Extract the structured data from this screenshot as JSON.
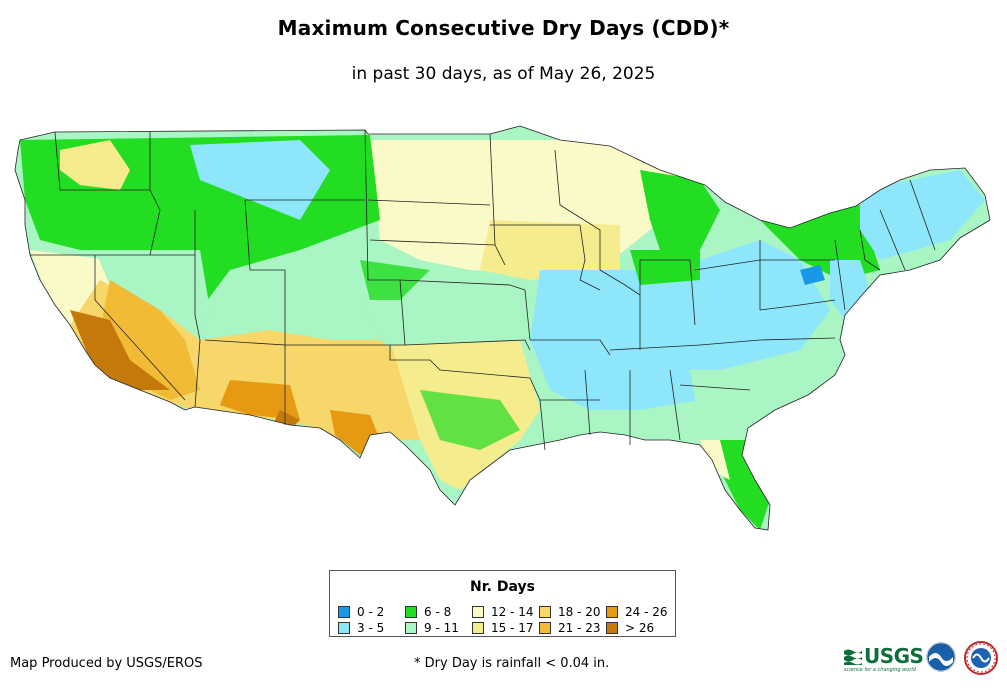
{
  "title": "Maximum Consecutive Dry Days (CDD)*",
  "subtitle": "in past 30 days, as of May 26, 2025",
  "legend": {
    "title": "Nr. Days",
    "items": [
      {
        "label": "0 - 2",
        "color": "#1a98e8"
      },
      {
        "label": "3 - 5",
        "color": "#8ee6fb"
      },
      {
        "label": "6 - 8",
        "color": "#22dd22"
      },
      {
        "label": "9 - 11",
        "color": "#a9f5c4"
      },
      {
        "label": "12 - 14",
        "color": "#fafac8"
      },
      {
        "label": "15 - 17",
        "color": "#f5ec8e"
      },
      {
        "label": "18 - 20",
        "color": "#f7d66a"
      },
      {
        "label": "21 - 23",
        "color": "#f2bb36"
      },
      {
        "label": "24 - 26",
        "color": "#e59a12"
      },
      {
        "label": "> 26",
        "color": "#c47a0a"
      }
    ]
  },
  "credit": "Map Produced by USGS/EROS",
  "footnote": "* Dry Day is rainfall < 0.04 in.",
  "logos": {
    "usgs": "USGS",
    "usgs_tagline": "science for a changing world",
    "noaa_icon": "noaa-logo-icon",
    "nws_icon": "nws-logo-icon"
  }
}
